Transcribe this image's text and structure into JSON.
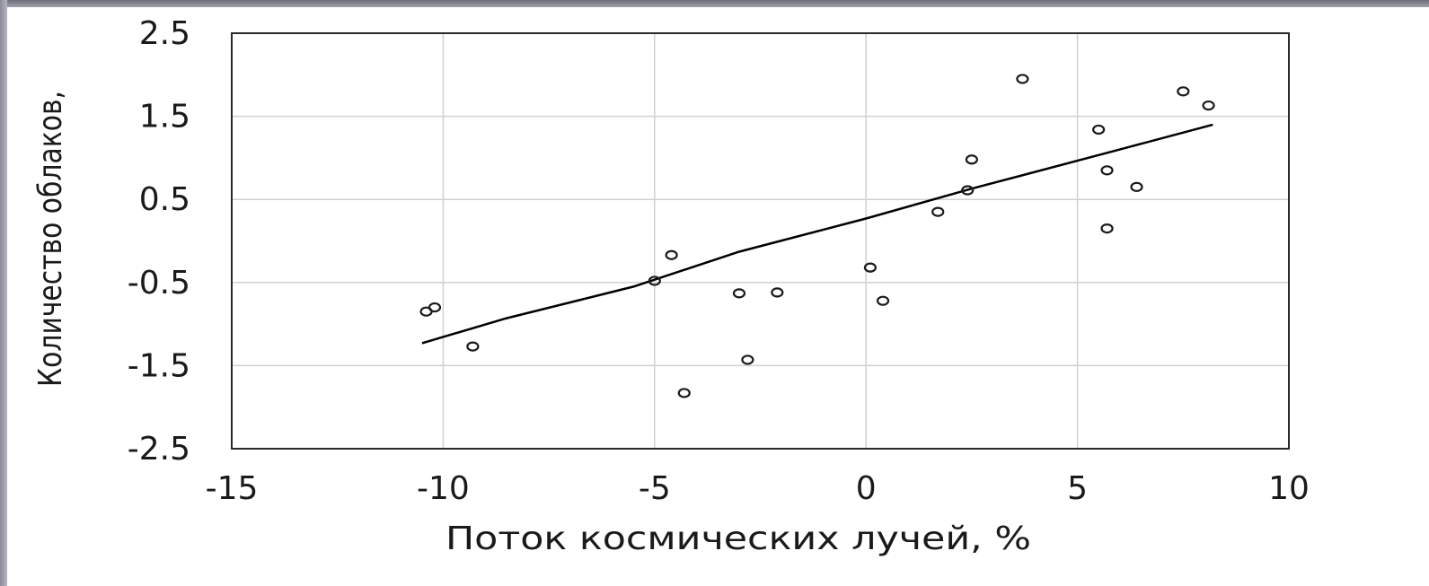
{
  "chart_data": {
    "type": "scatter",
    "title": "",
    "xlabel": "Поток космических лучей, %",
    "ylabel": "Количество облаков,",
    "xlim": [
      -15,
      10
    ],
    "ylim": [
      -2.5,
      2.5
    ],
    "x_ticks": [
      -15,
      -10,
      -5,
      0,
      5,
      10
    ],
    "y_ticks": [
      2.5,
      1.5,
      0.5,
      -0.5,
      -1.5,
      -2.5
    ],
    "x_tick_labels": [
      "-15",
      "-10",
      "-5",
      "0",
      "5",
      "10"
    ],
    "y_tick_labels": [
      "2.5",
      "1.5",
      "0.5",
      "-0.5",
      "-1.5",
      "-2.5"
    ],
    "grid": true,
    "series": [
      {
        "values": [
          {
            "x": -10.4,
            "y": -0.85
          },
          {
            "x": -10.2,
            "y": -0.8
          },
          {
            "x": -9.3,
            "y": -1.27
          },
          {
            "x": -5.0,
            "y": -0.48
          },
          {
            "x": -4.6,
            "y": -0.17
          },
          {
            "x": -4.3,
            "y": -1.83
          },
          {
            "x": -3.0,
            "y": -0.63
          },
          {
            "x": -2.8,
            "y": -1.43
          },
          {
            "x": -2.1,
            "y": -0.62
          },
          {
            "x": 0.1,
            "y": -0.32
          },
          {
            "x": 0.4,
            "y": -0.72
          },
          {
            "x": 1.7,
            "y": 0.35
          },
          {
            "x": 2.4,
            "y": 0.61
          },
          {
            "x": 2.5,
            "y": 0.98
          },
          {
            "x": 3.7,
            "y": 1.95
          },
          {
            "x": 5.5,
            "y": 1.34
          },
          {
            "x": 5.7,
            "y": 0.85
          },
          {
            "x": 5.7,
            "y": 0.15
          },
          {
            "x": 6.4,
            "y": 0.65
          },
          {
            "x": 7.5,
            "y": 1.8
          },
          {
            "x": 8.1,
            "y": 1.63
          }
        ]
      }
    ],
    "trendline": [
      {
        "x": -10.5,
        "y": -1.23
      },
      {
        "x": -8.5,
        "y": -0.93
      },
      {
        "x": -5.5,
        "y": -0.55
      },
      {
        "x": -3.0,
        "y": -0.13
      },
      {
        "x": 0.0,
        "y": 0.27
      },
      {
        "x": 2.5,
        "y": 0.63
      },
      {
        "x": 6.0,
        "y": 1.1
      },
      {
        "x": 8.2,
        "y": 1.4
      }
    ],
    "colors": {
      "marker": "#1a1a1a",
      "grid": "#d0d0d0",
      "frame": "#2a2a2a",
      "line": "#000000"
    }
  }
}
